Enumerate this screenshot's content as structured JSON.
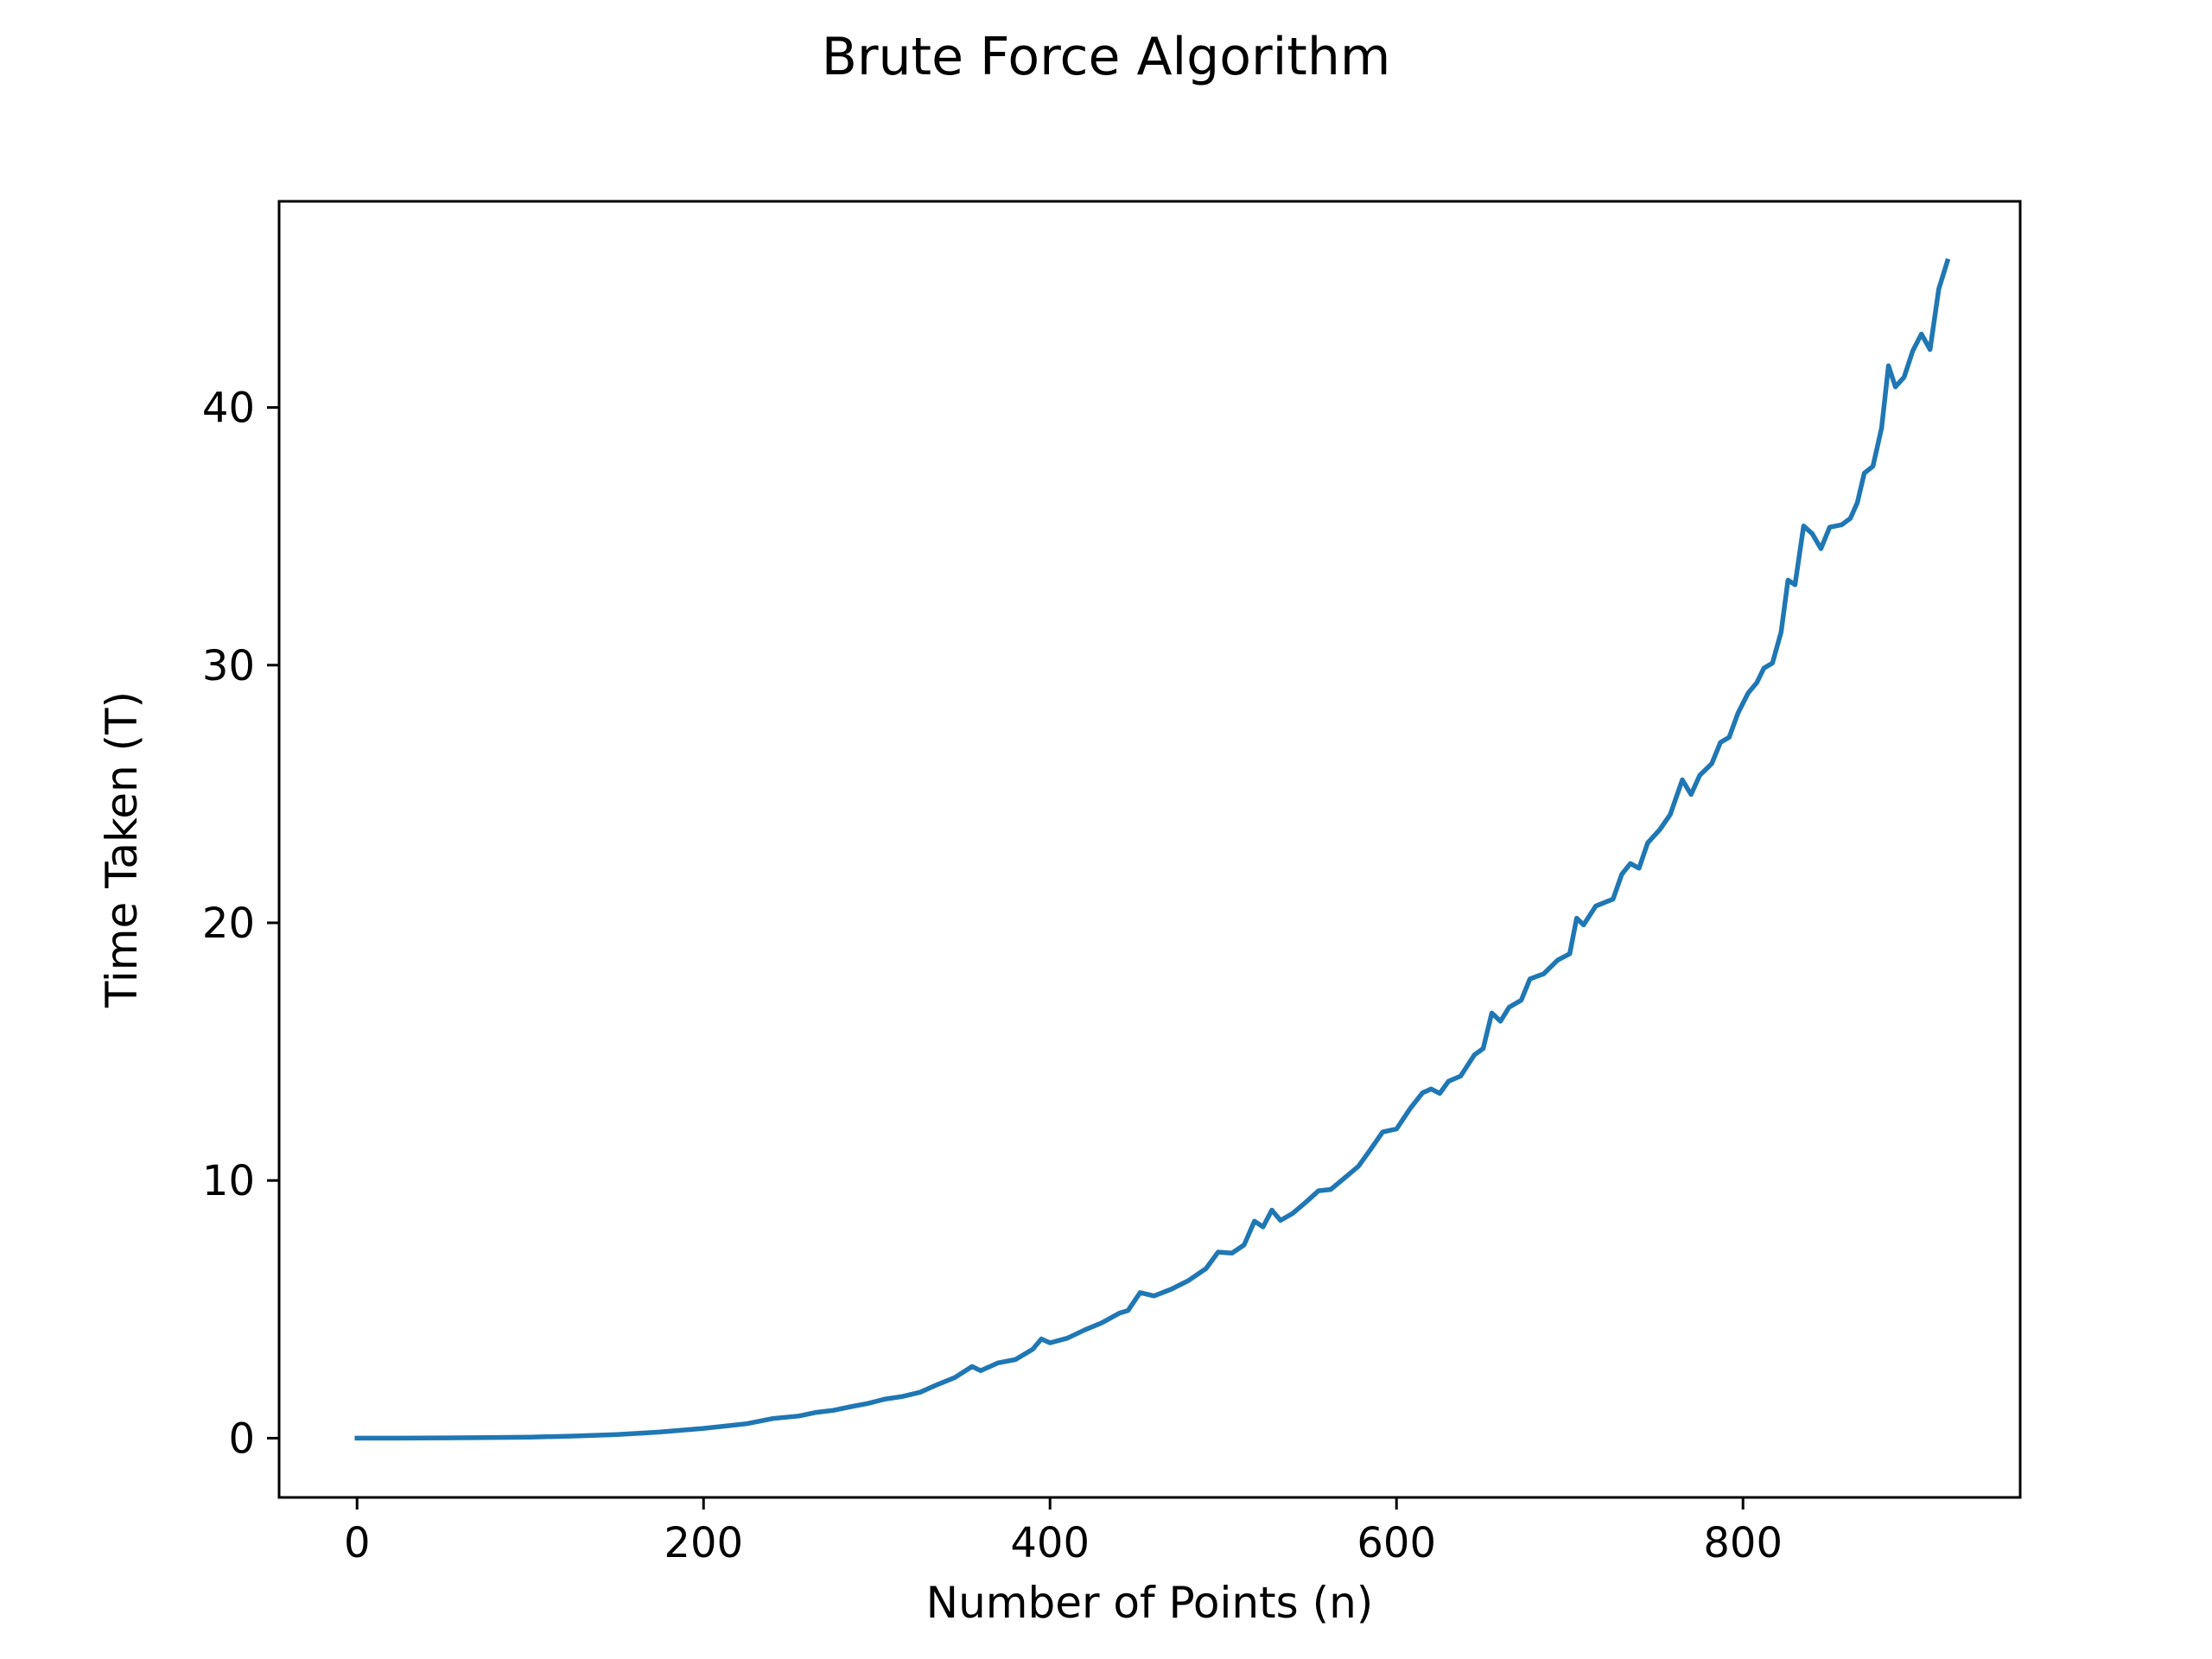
{
  "chart_data": {
    "type": "line",
    "title": "Brute Force Algorithm",
    "xlabel": "Number of Points (n)",
    "ylabel": "Time Taken (T)",
    "xlim": [
      -45,
      960
    ],
    "ylim": [
      -2.3,
      48
    ],
    "xticks": [
      0,
      200,
      400,
      600,
      800
    ],
    "yticks": [
      0,
      10,
      20,
      30,
      40
    ],
    "grid": false,
    "legend": "none",
    "series": [
      {
        "color": "#1f77b4",
        "points": [
          [
            0,
            0.0
          ],
          [
            25,
            0.0
          ],
          [
            50,
            0.01
          ],
          [
            75,
            0.02
          ],
          [
            100,
            0.04
          ],
          [
            125,
            0.08
          ],
          [
            150,
            0.14
          ],
          [
            175,
            0.24
          ],
          [
            200,
            0.38
          ],
          [
            225,
            0.56
          ],
          [
            240,
            0.76
          ],
          [
            255,
            0.86
          ],
          [
            265,
            1.0
          ],
          [
            275,
            1.08
          ],
          [
            285,
            1.22
          ],
          [
            295,
            1.35
          ],
          [
            305,
            1.52
          ],
          [
            315,
            1.62
          ],
          [
            325,
            1.78
          ],
          [
            335,
            2.08
          ],
          [
            345,
            2.35
          ],
          [
            355,
            2.78
          ],
          [
            360,
            2.62
          ],
          [
            370,
            2.92
          ],
          [
            380,
            3.05
          ],
          [
            390,
            3.45
          ],
          [
            395,
            3.85
          ],
          [
            400,
            3.7
          ],
          [
            410,
            3.88
          ],
          [
            420,
            4.2
          ],
          [
            430,
            4.48
          ],
          [
            440,
            4.85
          ],
          [
            445,
            4.95
          ],
          [
            452,
            5.65
          ],
          [
            460,
            5.52
          ],
          [
            470,
            5.78
          ],
          [
            480,
            6.12
          ],
          [
            490,
            6.58
          ],
          [
            497,
            7.22
          ],
          [
            505,
            7.18
          ],
          [
            512,
            7.5
          ],
          [
            518,
            8.42
          ],
          [
            523,
            8.2
          ],
          [
            528,
            8.85
          ],
          [
            533,
            8.45
          ],
          [
            540,
            8.72
          ],
          [
            548,
            9.18
          ],
          [
            555,
            9.6
          ],
          [
            562,
            9.65
          ],
          [
            570,
            10.1
          ],
          [
            578,
            10.55
          ],
          [
            585,
            11.2
          ],
          [
            592,
            11.88
          ],
          [
            600,
            12.0
          ],
          [
            608,
            12.8
          ],
          [
            615,
            13.4
          ],
          [
            620,
            13.55
          ],
          [
            625,
            13.38
          ],
          [
            630,
            13.85
          ],
          [
            637,
            14.05
          ],
          [
            645,
            14.88
          ],
          [
            650,
            15.12
          ],
          [
            655,
            16.5
          ],
          [
            660,
            16.18
          ],
          [
            665,
            16.72
          ],
          [
            672,
            17.0
          ],
          [
            677,
            17.82
          ],
          [
            685,
            18.02
          ],
          [
            693,
            18.55
          ],
          [
            700,
            18.8
          ],
          [
            704,
            20.18
          ],
          [
            708,
            19.92
          ],
          [
            715,
            20.65
          ],
          [
            725,
            20.92
          ],
          [
            730,
            21.88
          ],
          [
            735,
            22.3
          ],
          [
            740,
            22.12
          ],
          [
            745,
            23.1
          ],
          [
            752,
            23.62
          ],
          [
            758,
            24.2
          ],
          [
            765,
            25.55
          ],
          [
            770,
            24.98
          ],
          [
            775,
            25.72
          ],
          [
            782,
            26.18
          ],
          [
            787,
            27.0
          ],
          [
            792,
            27.2
          ],
          [
            797,
            28.12
          ],
          [
            803,
            28.92
          ],
          [
            808,
            29.32
          ],
          [
            812,
            29.88
          ],
          [
            817,
            30.08
          ],
          [
            822,
            31.28
          ],
          [
            826,
            33.3
          ],
          [
            830,
            33.12
          ],
          [
            835,
            35.4
          ],
          [
            840,
            35.1
          ],
          [
            845,
            34.52
          ],
          [
            850,
            35.35
          ],
          [
            857,
            35.45
          ],
          [
            862,
            35.7
          ],
          [
            866,
            36.3
          ],
          [
            870,
            37.45
          ],
          [
            875,
            37.72
          ],
          [
            880,
            39.2
          ],
          [
            884,
            41.62
          ],
          [
            888,
            40.8
          ],
          [
            893,
            41.18
          ],
          [
            898,
            42.2
          ],
          [
            903,
            42.85
          ],
          [
            908,
            42.25
          ],
          [
            913,
            44.6
          ],
          [
            918,
            45.68
          ]
        ]
      }
    ]
  }
}
